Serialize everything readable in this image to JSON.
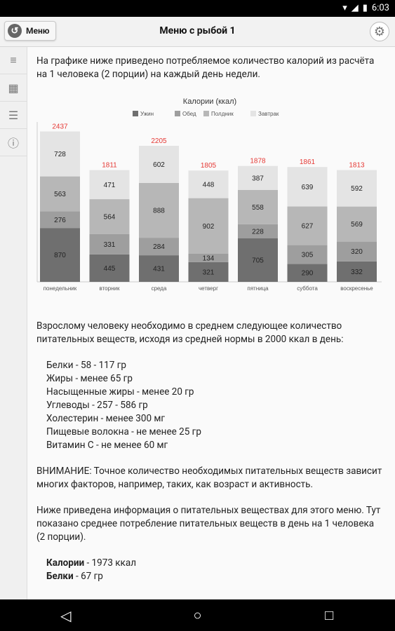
{
  "status": {
    "time": "6:03"
  },
  "appbar": {
    "menu_label": "Меню",
    "title": "Меню с рыбой 1"
  },
  "intro": "На графике ниже приведено потребляемое количество калорий из расчёта на 1 человека (2 порции) на каждый день недели.",
  "chart_data": {
    "type": "bar",
    "stacked": true,
    "title": "Калории (ккал)",
    "legend_position": "top",
    "categories": [
      "понедельник",
      "вторник",
      "среда",
      "четверг",
      "пятница",
      "суббота",
      "воскресенье"
    ],
    "series": [
      {
        "name": "Ужин",
        "color": "#6f6f6f",
        "values": [
          870,
          445,
          431,
          321,
          705,
          290,
          332
        ]
      },
      {
        "name": "Обед",
        "color": "#9e9e9e",
        "values": [
          276,
          331,
          284,
          134,
          228,
          305,
          320
        ]
      },
      {
        "name": "Полдник",
        "color": "#b7b7b7",
        "values": [
          563,
          564,
          888,
          902,
          558,
          627,
          569
        ]
      },
      {
        "name": "Завтрак",
        "color": "#e4e4e4",
        "values": [
          728,
          471,
          602,
          448,
          387,
          639,
          592
        ]
      }
    ],
    "totals": [
      2437,
      1811,
      2205,
      1805,
      1878,
      1861,
      1813
    ],
    "ylim": [
      0,
      2500
    ]
  },
  "nutrients_intro": "Взрослому человеку необходимо в среднем следующее количество питательных веществ, исходя из средней нормы в 2000 ккал в день:",
  "nutrients": [
    "Белки - 58 - 117 гр",
    "Жиры - менее 65 гр",
    "Насыщенные жиры - менее 20 гр",
    "Углеводы - 257 - 586 гр",
    "Холестерин - менее 300 мг",
    "Пищевые волокна - не менее 25 гр",
    "Витамин С - не менее 60 мг"
  ],
  "warning": "ВНИМАНИЕ: Точное количество необходимых питательных веществ зависит многих факторов, например, таких, как возраст и активность.",
  "menu_info": "Ниже приведена информация о питательных веществах для этого меню. Тут показано среднее потребление питательных веществ в день на 1 человека (2 порции).",
  "menu_nutrients": [
    {
      "name": "Калории",
      "value": " - 1973 ккал"
    },
    {
      "name": "Белки",
      "value": " - 67 гр"
    }
  ]
}
